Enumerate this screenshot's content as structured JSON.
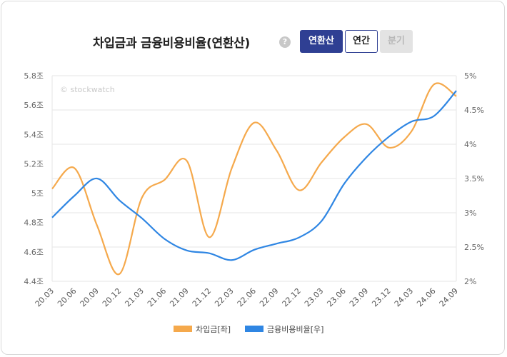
{
  "header": {
    "title": "차입금과 금융비용비율(연환산)",
    "help_icon_glyph": "?",
    "tabs": [
      {
        "label": "연환산",
        "state": "active"
      },
      {
        "label": "연간",
        "state": "normal"
      },
      {
        "label": "분기",
        "state": "disabled"
      }
    ]
  },
  "watermark": "© stockwatch",
  "colors": {
    "borrowings": "#f5a94c",
    "ratio": "#2f86e3",
    "active_tab": "#2f3f93"
  },
  "chart_data": {
    "type": "line",
    "categories": [
      "20.03",
      "20.06",
      "20.09",
      "20.12",
      "21.03",
      "21.06",
      "21.09",
      "21.12",
      "22.03",
      "22.06",
      "22.09",
      "22.12",
      "23.03",
      "23.06",
      "23.09",
      "23.12",
      "24.03",
      "24.06",
      "24.09"
    ],
    "left_axis": {
      "ylim": [
        4.4,
        5.8
      ],
      "ticks": [
        "4.4조",
        "4.6조",
        "4.8조",
        "5조",
        "5.2조",
        "5.4조",
        "5.6조",
        "5.8조"
      ]
    },
    "right_axis": {
      "ylim": [
        2,
        5
      ],
      "ticks": [
        "2%",
        "2.5%",
        "3%",
        "3.5%",
        "4%",
        "4.5%",
        "5%"
      ]
    },
    "series": [
      {
        "name": "차입금[좌]",
        "axis": "left",
        "values": [
          5.03,
          5.17,
          4.78,
          4.45,
          4.97,
          5.09,
          5.22,
          4.7,
          5.17,
          5.48,
          5.29,
          5.02,
          5.21,
          5.38,
          5.47,
          5.31,
          5.42,
          5.74,
          5.66
        ]
      },
      {
        "name": "금융비용비율[우]",
        "axis": "right",
        "values": [
          2.93,
          3.25,
          3.5,
          3.18,
          2.92,
          2.62,
          2.45,
          2.41,
          2.31,
          2.46,
          2.55,
          2.64,
          2.88,
          3.42,
          3.81,
          4.11,
          4.33,
          4.41,
          4.78
        ]
      }
    ],
    "grid": true,
    "legend": "bottom-center"
  }
}
